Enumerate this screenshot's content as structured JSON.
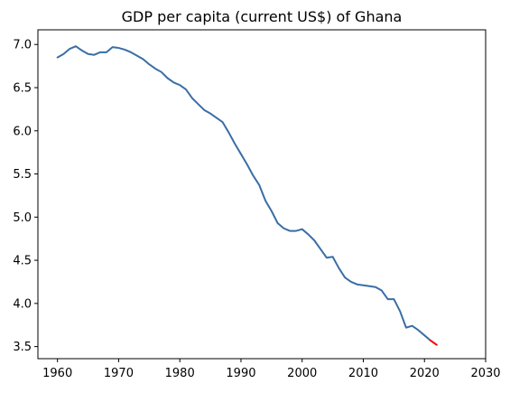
{
  "chart_data": {
    "type": "line",
    "title": "GDP per capita (current US$) of Ghana",
    "xlabel": "",
    "ylabel": "",
    "xlim": [
      1956.8,
      2030
    ],
    "ylim": [
      3.36,
      7.17
    ],
    "grid": false,
    "x_ticks": [
      1960,
      1970,
      1980,
      1990,
      2000,
      2010,
      2020,
      2030
    ],
    "y_ticks": [
      3.5,
      4.0,
      4.5,
      5.0,
      5.5,
      6.0,
      6.5,
      7.0
    ],
    "series": [
      {
        "color": "#3a6ea5",
        "x": [
          1960,
          1961,
          1962,
          1963,
          1964,
          1965,
          1966,
          1967,
          1968,
          1969,
          1970,
          1971,
          1972,
          1973,
          1974,
          1975,
          1976,
          1977,
          1978,
          1979,
          1980,
          1981,
          1982,
          1983,
          1984,
          1985,
          1986,
          1987,
          1988,
          1989,
          1990,
          1991,
          1992,
          1993,
          1994,
          1995,
          1996,
          1997,
          1998,
          1999,
          2000,
          2001,
          2002,
          2003,
          2004,
          2005,
          2006,
          2007,
          2008,
          2009,
          2010,
          2011,
          2012,
          2013,
          2014,
          2015,
          2016,
          2017,
          2018,
          2019,
          2020,
          2021
        ],
        "values": [
          6.85,
          6.89,
          6.95,
          6.98,
          6.93,
          6.89,
          6.88,
          6.91,
          6.91,
          6.97,
          6.96,
          6.94,
          6.91,
          6.87,
          6.83,
          6.77,
          6.72,
          6.68,
          6.61,
          6.56,
          6.53,
          6.48,
          6.38,
          6.31,
          6.24,
          6.2,
          6.15,
          6.1,
          5.98,
          5.85,
          5.73,
          5.61,
          5.48,
          5.37,
          5.19,
          5.07,
          4.93,
          4.87,
          4.84,
          4.84,
          4.86,
          4.8,
          4.73,
          4.63,
          4.53,
          4.54,
          4.41,
          4.3,
          4.25,
          4.22,
          4.21,
          4.2,
          4.19,
          4.15,
          4.05,
          4.05,
          3.91,
          3.72,
          3.74,
          3.69,
          3.63,
          3.57
        ]
      },
      {
        "color": "#ff0000",
        "x": [
          2021,
          2022
        ],
        "values": [
          3.57,
          3.52
        ]
      }
    ]
  }
}
